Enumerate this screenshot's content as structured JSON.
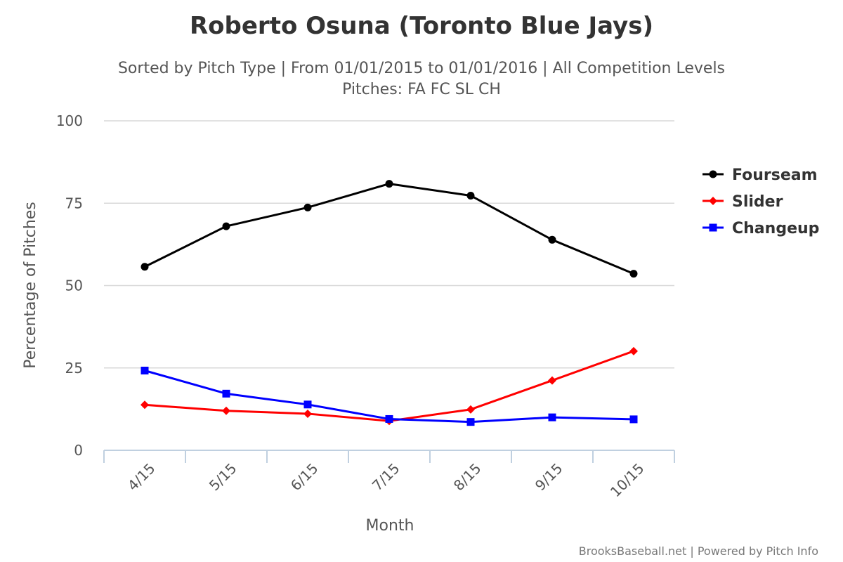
{
  "chart_data": {
    "type": "line",
    "title": "Roberto Osuna (Toronto Blue Jays)",
    "subtitle_line1": "Sorted by Pitch Type | From 01/01/2015 to 01/01/2016 | All Competition Levels",
    "subtitle_line2": "Pitches: FA FC SL CH",
    "xlabel": "Month",
    "ylabel": "Percentage of Pitches",
    "categories": [
      "4/15",
      "5/15",
      "6/15",
      "7/15",
      "8/15",
      "9/15",
      "10/15"
    ],
    "ylim": [
      0,
      100
    ],
    "yticks": [
      0,
      25,
      50,
      75,
      100
    ],
    "grid": true,
    "legend_position": "right",
    "series": [
      {
        "name": "Fourseam",
        "color": "#000000",
        "marker": "circle",
        "values": [
          55.7,
          68.0,
          73.7,
          80.9,
          77.3,
          63.9,
          53.6
        ]
      },
      {
        "name": "Slider",
        "color": "#ff0000",
        "marker": "diamond",
        "values": [
          13.8,
          12.0,
          11.1,
          8.9,
          12.4,
          21.2,
          30.1
        ]
      },
      {
        "name": "Changeup",
        "color": "#0000ff",
        "marker": "square",
        "values": [
          24.2,
          17.2,
          13.9,
          9.5,
          8.6,
          10.0,
          9.4
        ]
      }
    ],
    "credit": "BrooksBaseball.net | Powered by Pitch Info"
  }
}
